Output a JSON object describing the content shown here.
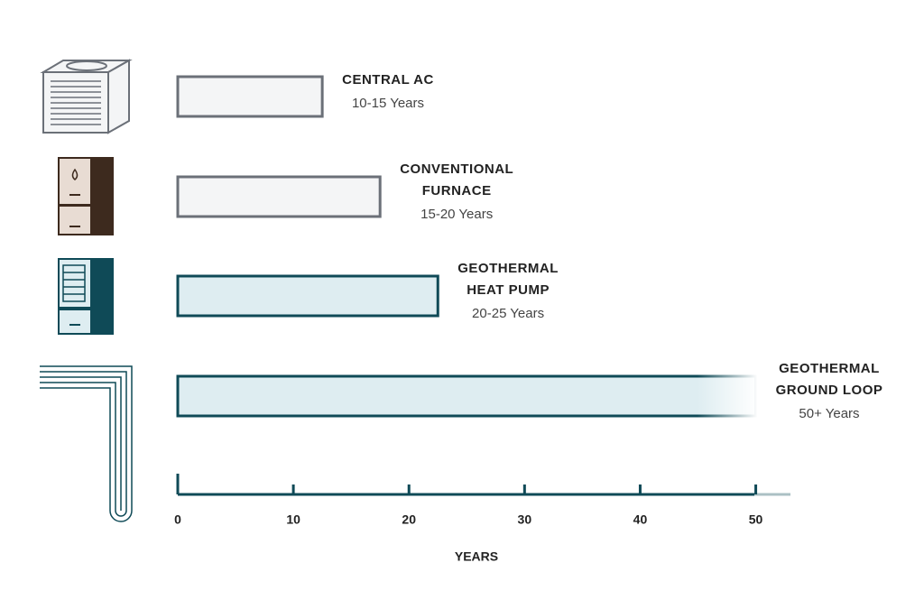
{
  "chart_data": {
    "type": "bar",
    "orientation": "horizontal",
    "categories": [
      [
        "CENTRAL AC"
      ],
      [
        "CONVENTIONAL",
        "FURNACE"
      ],
      [
        "GEOTHERMAL",
        "HEAT PUMP"
      ],
      [
        "GEOTHERMAL",
        "GROUND LOOP"
      ]
    ],
    "values": [
      12.5,
      17.5,
      22.5,
      50
    ],
    "value_labels": [
      "10-15 Years",
      "15-20 Years",
      "20-25 Years",
      "50+ Years"
    ],
    "colors": [
      "#f4f5f6",
      "#f4f5f6",
      "#deedf1",
      "#deedf1"
    ],
    "edge_colors": [
      "#6b7078",
      "#6b7078",
      "#0f4a57",
      "#0f4a57"
    ],
    "xlabel": "YEARS",
    "xlim": [
      0,
      53
    ],
    "xticks": [
      0,
      10,
      20,
      30,
      40,
      50
    ],
    "grid": false
  }
}
